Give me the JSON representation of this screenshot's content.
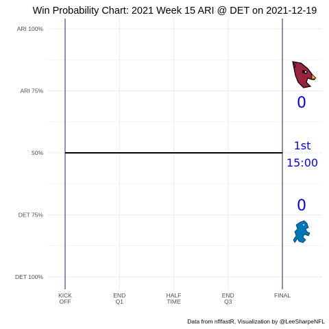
{
  "chart_data": {
    "type": "line",
    "title": "Win Probability Chart: 2021 Week 15 ARI @ DET on 2021-12-19",
    "caption": "Data from nflfastR, Visualization by @LeeSharpeNFL",
    "y_ticks": [
      {
        "value": 1.0,
        "label": "ARI 100%"
      },
      {
        "value": 0.75,
        "label": "ARI 75%"
      },
      {
        "value": 0.5,
        "label": "50%"
      },
      {
        "value": 0.25,
        "label": "DET 75%"
      },
      {
        "value": 0.0,
        "label": "DET 100%"
      }
    ],
    "ylim": [
      0,
      1
    ],
    "x_ticks": [
      {
        "value": 0,
        "label": [
          "KICK",
          "OFF"
        ]
      },
      {
        "value": 0.25,
        "label": [
          "END",
          "Q1"
        ]
      },
      {
        "value": 0.5,
        "label": [
          "HALF",
          "TIME"
        ]
      },
      {
        "value": 0.75,
        "label": [
          "END",
          "Q3"
        ]
      },
      {
        "value": 1.0,
        "label": [
          "FINAL"
        ]
      }
    ],
    "xlim": [
      0,
      1
    ],
    "grid": true,
    "series": [
      {
        "x": [
          0,
          1
        ],
        "values": [
          0.5,
          0.5
        ],
        "color": "#000000"
      }
    ],
    "away": {
      "team": "ARI",
      "score": "0",
      "logo": "cardinals-logo",
      "color": "#97233F"
    },
    "home": {
      "team": "DET",
      "score": "0",
      "logo": "lions-logo",
      "color": "#0076B6"
    },
    "game_state": {
      "quarter": "1st",
      "clock": "15:00"
    },
    "accent_color": "#0000ff",
    "vline_color": "#1a1a6e"
  }
}
